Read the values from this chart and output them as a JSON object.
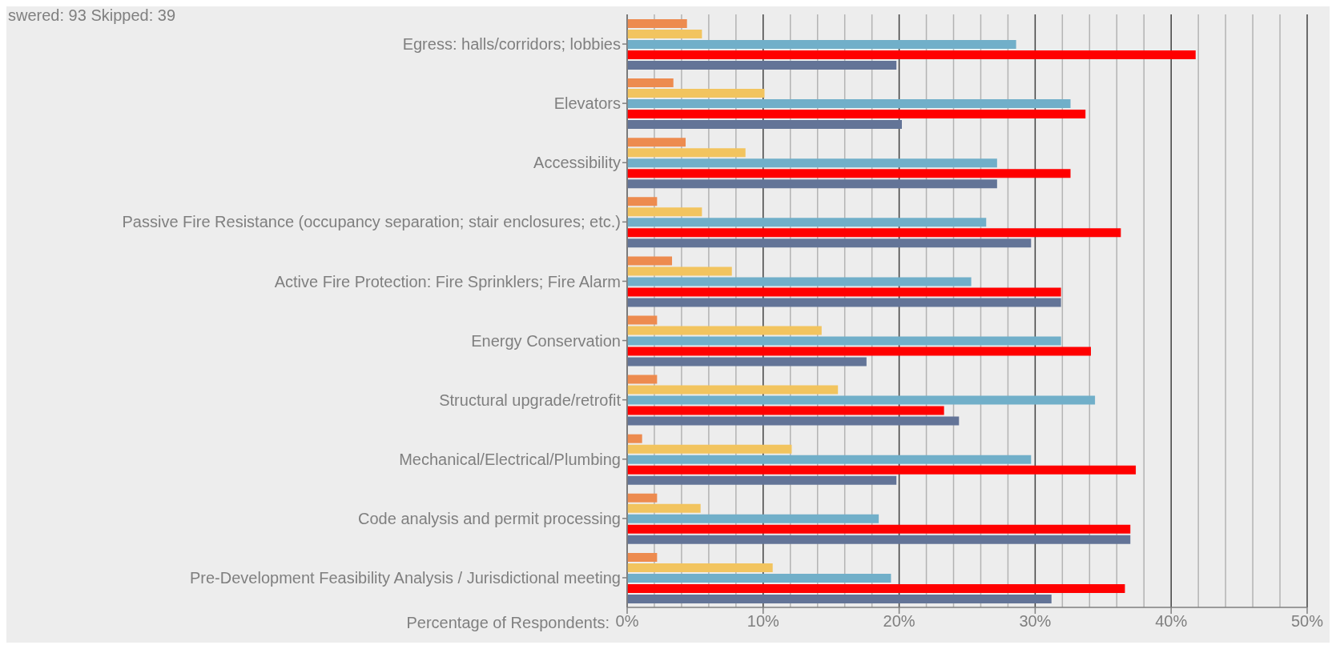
{
  "chart_data": {
    "type": "bar",
    "orientation": "horizontal",
    "xlabel": "Percentage of Respondents:",
    "annotations": [
      "swered: 93   Skipped: 39"
    ],
    "categories": [
      "Egress: halls/corridors; lobbies",
      "Elevators",
      "Accessibility",
      "Passive Fire Resistance (occupancy separation; stair enclosures; etc.)",
      "Active Fire Protection: Fire Sprinklers; Fire Alarm",
      "Energy Conservation",
      "Structural upgrade/retrofit",
      "Mechanical/Electrical/Plumbing",
      "Code analysis and permit processing",
      "Pre-Development Feasibility Analysis / Jurisdictional meeting"
    ],
    "series": [
      {
        "color": "#ed8b4f",
        "values": [
          4.4,
          3.4,
          4.3,
          2.2,
          3.3,
          2.2,
          2.2,
          1.1,
          2.2,
          2.2
        ]
      },
      {
        "color": "#f2c45f",
        "values": [
          5.5,
          10.1,
          8.7,
          5.5,
          7.7,
          14.3,
          15.5,
          12.1,
          5.4,
          10.7
        ]
      },
      {
        "color": "#71afc9",
        "values": [
          28.6,
          32.6,
          27.2,
          26.4,
          25.3,
          31.9,
          34.4,
          29.7,
          18.5,
          19.4
        ]
      },
      {
        "color": "#ff0000",
        "values": [
          41.8,
          33.7,
          32.6,
          36.3,
          31.9,
          34.1,
          23.3,
          37.4,
          37.0,
          36.6
        ]
      },
      {
        "color": "#637497",
        "values": [
          19.8,
          20.2,
          27.2,
          29.7,
          31.9,
          17.6,
          24.4,
          19.8,
          37.0,
          31.2
        ]
      }
    ],
    "xlim": [
      0,
      50
    ],
    "xticks": [
      {
        "value": 0,
        "label": "0%"
      },
      {
        "value": 2,
        "label": null
      },
      {
        "value": 4,
        "label": null
      },
      {
        "value": 6,
        "label": null
      },
      {
        "value": 8,
        "label": null
      },
      {
        "value": 10,
        "label": "10%"
      },
      {
        "value": 12,
        "label": null
      },
      {
        "value": 14,
        "label": null
      },
      {
        "value": 16,
        "label": null
      },
      {
        "value": 18,
        "label": null
      },
      {
        "value": 20,
        "label": "20%"
      },
      {
        "value": 22,
        "label": null
      },
      {
        "value": 24,
        "label": null
      },
      {
        "value": 26,
        "label": null
      },
      {
        "value": 28,
        "label": null
      },
      {
        "value": 30,
        "label": "30%"
      },
      {
        "value": 32,
        "label": null
      },
      {
        "value": 34,
        "label": null
      },
      {
        "value": 36,
        "label": null
      },
      {
        "value": 38,
        "label": null
      },
      {
        "value": 40,
        "label": "40%"
      },
      {
        "value": 42,
        "label": null
      },
      {
        "value": 44,
        "label": null
      },
      {
        "value": 46,
        "label": null
      },
      {
        "value": 48,
        "label": null
      },
      {
        "value": 50,
        "label": "50%"
      }
    ],
    "grid": "x"
  }
}
